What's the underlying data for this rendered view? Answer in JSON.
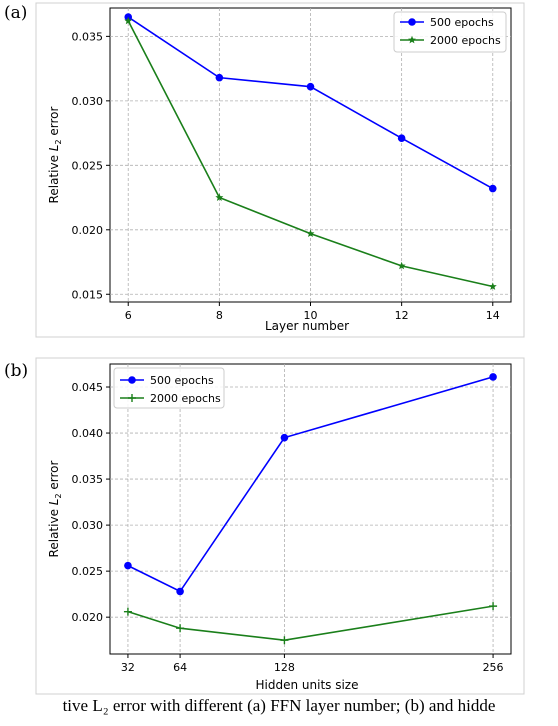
{
  "chart_data": [
    {
      "type": "line",
      "panel_label": "(a)",
      "xlabel": "Layer number",
      "ylabel": "Relative L_2 error",
      "x": [
        6,
        8,
        10,
        12,
        14
      ],
      "xticks": [
        "6",
        "8",
        "10",
        "12",
        "14"
      ],
      "yticks": [
        "0.015",
        "0.020",
        "0.025",
        "0.030",
        "0.035"
      ],
      "xlim": [
        5.6,
        14.4
      ],
      "ylim": [
        0.0144,
        0.0372
      ],
      "grid": true,
      "legend_position": "top-right",
      "series": [
        {
          "name": "500 epochs",
          "color": "#0000ff",
          "marker": "circle",
          "values": [
            0.0365,
            0.0318,
            0.0311,
            0.0271,
            0.0232
          ]
        },
        {
          "name": "2000 epochs",
          "color": "#1a7f1a",
          "marker": "star",
          "values": [
            0.0362,
            0.0225,
            0.0197,
            0.0172,
            0.0156
          ]
        }
      ]
    },
    {
      "type": "line",
      "panel_label": "(b)",
      "xlabel": "Hidden units size",
      "ylabel": "Relative L_2 error",
      "x": [
        32,
        64,
        128,
        256
      ],
      "xticks": [
        "32",
        "64",
        "128",
        "256"
      ],
      "yticks": [
        "0.020",
        "0.025",
        "0.030",
        "0.035",
        "0.040",
        "0.045"
      ],
      "xlim": [
        21,
        267
      ],
      "ylim": [
        0.016,
        0.0475
      ],
      "grid": true,
      "legend_position": "top-left",
      "series": [
        {
          "name": "500 epochs",
          "color": "#0000ff",
          "marker": "circle",
          "values": [
            0.0256,
            0.0228,
            0.0395,
            0.0461
          ]
        },
        {
          "name": "2000 epochs",
          "color": "#1a7f1a",
          "marker": "plus",
          "values": [
            0.0206,
            0.0188,
            0.0175,
            0.0212
          ]
        }
      ]
    }
  ],
  "caption": "tive L₂ error with different (a) FFN layer number; (b) and hidde"
}
